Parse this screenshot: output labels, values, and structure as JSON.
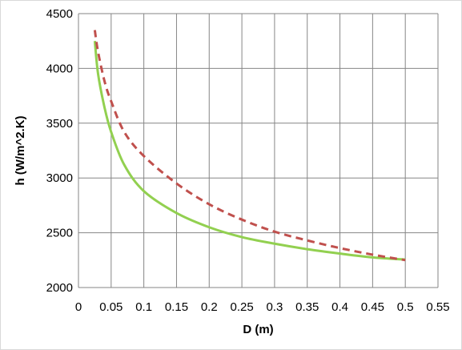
{
  "chart_data": {
    "type": "line",
    "xlabel": "D (m)",
    "ylabel": "h (W/m^2.K)",
    "xlim": [
      0,
      0.55
    ],
    "ylim": [
      2000,
      4500
    ],
    "x_ticks": [
      "0",
      "0.05",
      "0.1",
      "0.15",
      "0.2",
      "0.25",
      "0.3",
      "0.35",
      "0.4",
      "0.45",
      "0.5",
      "0.55"
    ],
    "y_ticks": [
      "2000",
      "2500",
      "3000",
      "3500",
      "4000",
      "4500"
    ],
    "grid": true,
    "legend": "none",
    "series": [
      {
        "color": "#92d050",
        "style": "solid",
        "x": [
          0.025,
          0.03,
          0.04,
          0.05,
          0.07,
          0.1,
          0.15,
          0.2,
          0.25,
          0.3,
          0.35,
          0.4,
          0.45,
          0.5
        ],
        "y": [
          4250,
          3950,
          3640,
          3420,
          3120,
          2880,
          2680,
          2550,
          2460,
          2400,
          2350,
          2310,
          2275,
          2255
        ]
      },
      {
        "color": "#c0504d",
        "style": "dashed",
        "x": [
          0.025,
          0.03,
          0.04,
          0.05,
          0.07,
          0.1,
          0.15,
          0.2,
          0.25,
          0.3,
          0.35,
          0.4,
          0.45,
          0.5
        ],
        "y": [
          4350,
          4150,
          3880,
          3700,
          3420,
          3200,
          2950,
          2760,
          2620,
          2510,
          2430,
          2360,
          2300,
          2250
        ]
      }
    ]
  }
}
